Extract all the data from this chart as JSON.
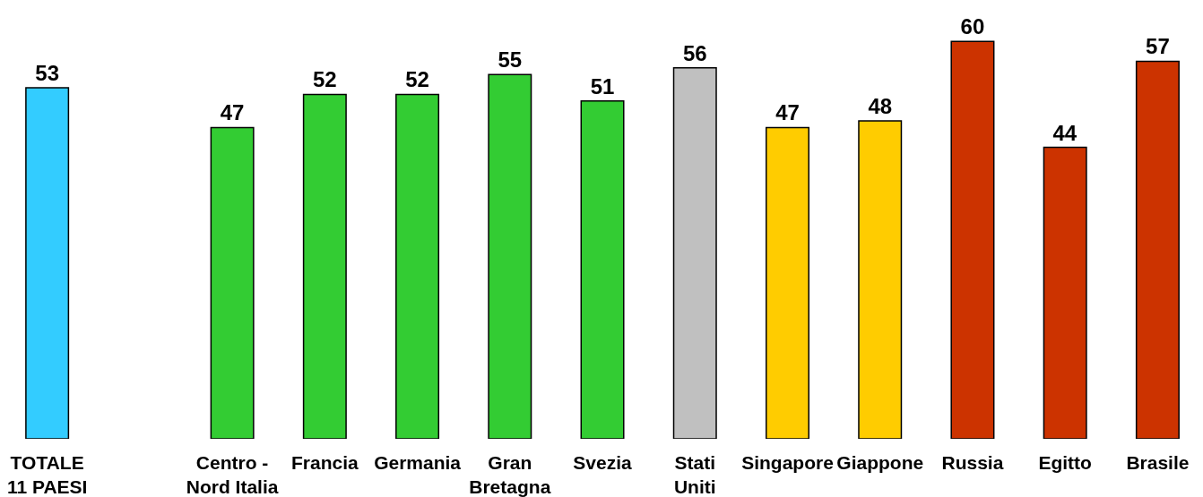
{
  "chart_data": {
    "type": "bar",
    "categories": [
      "TOTALE\n11 PAESI",
      null,
      "Centro -\nNord Italia",
      "Francia",
      "Germania",
      "Gran\nBretagna",
      "Svezia",
      "Stati\nUniti",
      "Singapore",
      "Giappone",
      "Russia",
      "Egitto",
      "Brasile"
    ],
    "values": [
      53,
      null,
      47,
      52,
      52,
      55,
      51,
      56,
      47,
      48,
      60,
      44,
      57
    ],
    "colors": [
      "#33ccff",
      null,
      "#33cc33",
      "#33cc33",
      "#33cc33",
      "#33cc33",
      "#33cc33",
      "#c0c0c0",
      "#ffcc00",
      "#ffcc00",
      "#cc3300",
      "#cc3300",
      "#cc3300"
    ],
    "data_labels": true
  }
}
